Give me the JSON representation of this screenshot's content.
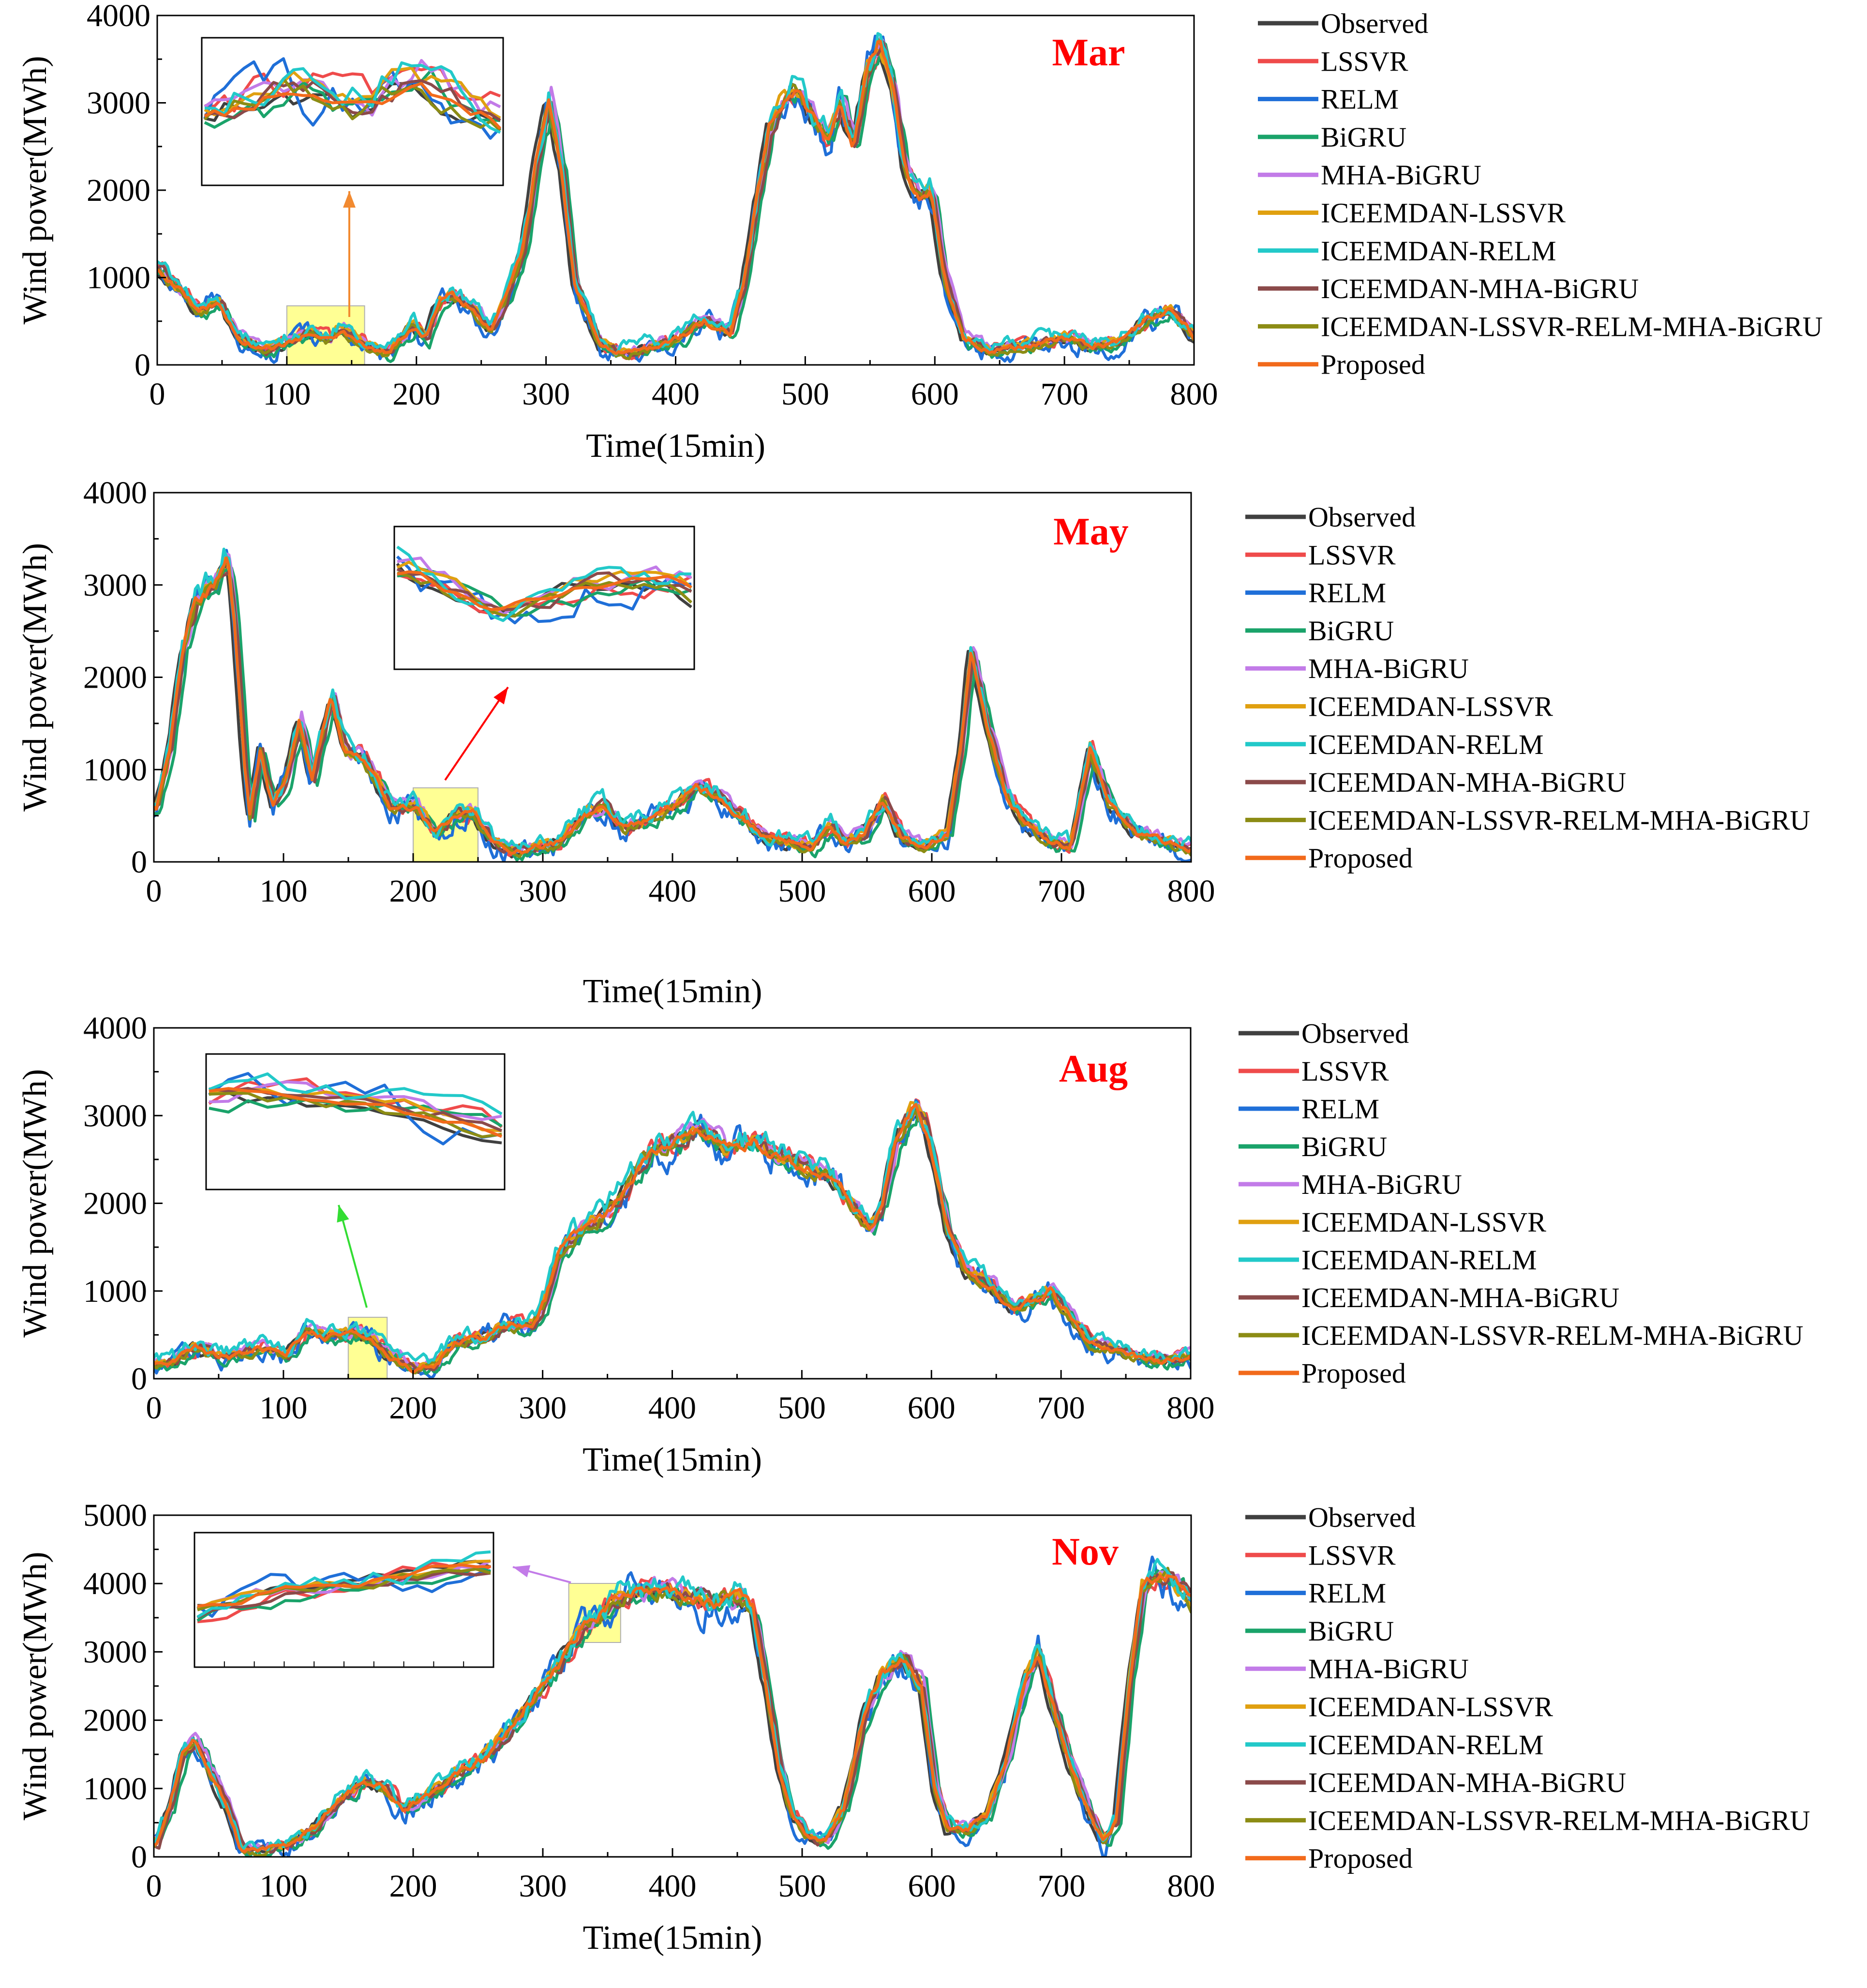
{
  "series_names": [
    "Observed",
    "LSSVR",
    "RELM",
    "BiGRU",
    "MHA-BiGRU",
    "ICEEMDAN-LSSVR",
    "ICEEMDAN-RELM",
    "ICEEMDAN-MHA-BiGRU",
    "ICEEMDAN-LSSVR-RELM-MHA-BiGRU",
    "Proposed"
  ],
  "colors": {
    "Observed": "#404040",
    "LSSVR": "#ef4b4b",
    "RELM": "#1f6fd8",
    "BiGRU": "#1aa36a",
    "MHA-BiGRU": "#c27be8",
    "ICEEMDAN-LSSVR": "#e0a010",
    "ICEEMDAN-RELM": "#22c9c9",
    "ICEEMDAN-MHA-BiGRU": "#8b4a4a",
    "ICEEMDAN-LSSVR-RELM-MHA-BiGRU": "#8c8c14",
    "Proposed": "#f26a1b",
    "panel_title": "#ff0000",
    "highlight": "#ffff66",
    "arrow_mar": "#f28a30",
    "arrow_may": "#ff0000",
    "arrow_aug": "#33dd33",
    "arrow_nov": "#c27be8"
  },
  "chart_data": [
    {
      "type": "line",
      "panel": "Mar",
      "title": "Mar",
      "xlabel": "Time(15min)",
      "ylabel": "Wind power(MWh)",
      "xlim": [
        0,
        800
      ],
      "ylim": [
        0,
        4000
      ],
      "xticks": [
        "0",
        "100",
        "200",
        "300",
        "400",
        "500",
        "600",
        "700",
        "800"
      ],
      "yticks": [
        "0",
        "1000",
        "2000",
        "3000",
        "4000"
      ],
      "legend": [
        "Observed",
        "LSSVR",
        "RELM",
        "BiGRU",
        "MHA-BiGRU",
        "ICEEMDAN-LSSVR",
        "ICEEMDAN-RELM",
        "ICEEMDAN-MHA-BiGRU",
        "ICEEMDAN-LSSVR-RELM-MHA-BiGRU",
        "Proposed"
      ],
      "highlight_range": [
        100,
        160
      ],
      "observed_keypoints": [
        [
          0,
          1050
        ],
        [
          15,
          850
        ],
        [
          30,
          600
        ],
        [
          45,
          720
        ],
        [
          60,
          300
        ],
        [
          80,
          150
        ],
        [
          100,
          250
        ],
        [
          115,
          380
        ],
        [
          130,
          280
        ],
        [
          140,
          400
        ],
        [
          160,
          200
        ],
        [
          175,
          120
        ],
        [
          195,
          450
        ],
        [
          205,
          300
        ],
        [
          215,
          700
        ],
        [
          225,
          800
        ],
        [
          240,
          650
        ],
        [
          255,
          400
        ],
        [
          265,
          700
        ],
        [
          280,
          1300
        ],
        [
          290,
          2300
        ],
        [
          300,
          3000
        ],
        [
          310,
          2200
        ],
        [
          320,
          900
        ],
        [
          340,
          200
        ],
        [
          360,
          120
        ],
        [
          380,
          200
        ],
        [
          400,
          300
        ],
        [
          420,
          500
        ],
        [
          440,
          350
        ],
        [
          450,
          900
        ],
        [
          460,
          1800
        ],
        [
          470,
          2700
        ],
        [
          480,
          3000
        ],
        [
          490,
          3150
        ],
        [
          500,
          2900
        ],
        [
          515,
          2600
        ],
        [
          525,
          3000
        ],
        [
          535,
          2500
        ],
        [
          545,
          3300
        ],
        [
          555,
          3700
        ],
        [
          565,
          3200
        ],
        [
          575,
          2200
        ],
        [
          585,
          1900
        ],
        [
          595,
          2000
        ],
        [
          605,
          1000
        ],
        [
          620,
          300
        ],
        [
          640,
          150
        ],
        [
          660,
          200
        ],
        [
          680,
          250
        ],
        [
          700,
          300
        ],
        [
          720,
          200
        ],
        [
          740,
          250
        ],
        [
          760,
          500
        ],
        [
          780,
          600
        ],
        [
          800,
          300
        ]
      ]
    },
    {
      "type": "line",
      "panel": "May",
      "title": "May",
      "xlabel": "Time(15min)",
      "ylabel": "Wind power(MWh)",
      "xlim": [
        0,
        800
      ],
      "ylim": [
        0,
        4000
      ],
      "xticks": [
        "0",
        "100",
        "200",
        "300",
        "400",
        "500",
        "600",
        "700",
        "800"
      ],
      "yticks": [
        "0",
        "1000",
        "2000",
        "3000",
        "4000"
      ],
      "legend": [
        "Observed",
        "LSSVR",
        "RELM",
        "BiGRU",
        "MHA-BiGRU",
        "ICEEMDAN-LSSVR",
        "ICEEMDAN-RELM",
        "ICEEMDAN-MHA-BiGRU",
        "ICEEMDAN-LSSVR-RELM-MHA-BiGRU",
        "Proposed"
      ],
      "highlight_range": [
        200,
        250
      ],
      "observed_keypoints": [
        [
          0,
          600
        ],
        [
          10,
          1200
        ],
        [
          20,
          2300
        ],
        [
          30,
          2800
        ],
        [
          45,
          3000
        ],
        [
          55,
          3300
        ],
        [
          60,
          2600
        ],
        [
          68,
          1000
        ],
        [
          72,
          500
        ],
        [
          80,
          1200
        ],
        [
          90,
          600
        ],
        [
          100,
          900
        ],
        [
          110,
          1500
        ],
        [
          120,
          900
        ],
        [
          135,
          1800
        ],
        [
          145,
          1200
        ],
        [
          160,
          1100
        ],
        [
          180,
          600
        ],
        [
          200,
          600
        ],
        [
          215,
          300
        ],
        [
          230,
          500
        ],
        [
          245,
          500
        ],
        [
          260,
          200
        ],
        [
          275,
          100
        ],
        [
          290,
          150
        ],
        [
          310,
          200
        ],
        [
          330,
          500
        ],
        [
          345,
          600
        ],
        [
          360,
          350
        ],
        [
          380,
          450
        ],
        [
          400,
          600
        ],
        [
          415,
          800
        ],
        [
          430,
          750
        ],
        [
          450,
          500
        ],
        [
          470,
          250
        ],
        [
          490,
          200
        ],
        [
          505,
          150
        ],
        [
          520,
          400
        ],
        [
          530,
          200
        ],
        [
          545,
          300
        ],
        [
          560,
          650
        ],
        [
          575,
          250
        ],
        [
          590,
          150
        ],
        [
          610,
          300
        ],
        [
          620,
          1200
        ],
        [
          628,
          2300
        ],
        [
          640,
          1500
        ],
        [
          655,
          700
        ],
        [
          670,
          400
        ],
        [
          690,
          200
        ],
        [
          705,
          150
        ],
        [
          720,
          1200
        ],
        [
          735,
          600
        ],
        [
          755,
          300
        ],
        [
          780,
          200
        ],
        [
          800,
          100
        ]
      ]
    },
    {
      "type": "line",
      "panel": "Aug",
      "title": "Aug",
      "xlabel": "Time(15min)",
      "ylabel": "Wind power(MWh)",
      "xlim": [
        0,
        800
      ],
      "ylim": [
        0,
        4000
      ],
      "xticks": [
        "0",
        "100",
        "200",
        "300",
        "400",
        "500",
        "600",
        "700",
        "800"
      ],
      "yticks": [
        "0",
        "1000",
        "2000",
        "3000",
        "4000"
      ],
      "legend": [
        "Observed",
        "LSSVR",
        "RELM",
        "BiGRU",
        "MHA-BiGRU",
        "ICEEMDAN-LSSVR",
        "ICEEMDAN-RELM",
        "ICEEMDAN-MHA-BiGRU",
        "ICEEMDAN-LSSVR-RELM-MHA-BiGRU",
        "Proposed"
      ],
      "highlight_range": [
        150,
        180
      ],
      "observed_keypoints": [
        [
          0,
          150
        ],
        [
          15,
          200
        ],
        [
          30,
          350
        ],
        [
          45,
          250
        ],
        [
          60,
          250
        ],
        [
          80,
          350
        ],
        [
          100,
          250
        ],
        [
          115,
          550
        ],
        [
          130,
          450
        ],
        [
          150,
          500
        ],
        [
          165,
          450
        ],
        [
          180,
          250
        ],
        [
          200,
          100
        ],
        [
          215,
          150
        ],
        [
          230,
          400
        ],
        [
          250,
          450
        ],
        [
          270,
          600
        ],
        [
          290,
          600
        ],
        [
          300,
          900
        ],
        [
          310,
          1400
        ],
        [
          320,
          1600
        ],
        [
          340,
          1800
        ],
        [
          360,
          2100
        ],
        [
          380,
          2600
        ],
        [
          400,
          2700
        ],
        [
          420,
          2800
        ],
        [
          440,
          2600
        ],
        [
          460,
          2700
        ],
        [
          480,
          2500
        ],
        [
          500,
          2400
        ],
        [
          520,
          2300
        ],
        [
          540,
          1900
        ],
        [
          550,
          1700
        ],
        [
          560,
          2000
        ],
        [
          570,
          2700
        ],
        [
          585,
          3100
        ],
        [
          595,
          2800
        ],
        [
          610,
          1700
        ],
        [
          625,
          1200
        ],
        [
          640,
          1100
        ],
        [
          660,
          800
        ],
        [
          680,
          900
        ],
        [
          690,
          1000
        ],
        [
          705,
          700
        ],
        [
          720,
          400
        ],
        [
          735,
          350
        ],
        [
          755,
          250
        ],
        [
          775,
          200
        ],
        [
          800,
          250
        ]
      ]
    },
    {
      "type": "line",
      "panel": "Nov",
      "title": "Nov",
      "xlabel": "Time(15min)",
      "ylabel": "Wind power(MWh)",
      "xlim": [
        0,
        800
      ],
      "ylim": [
        0,
        5000
      ],
      "xticks": [
        "0",
        "100",
        "200",
        "300",
        "400",
        "500",
        "600",
        "700",
        "800"
      ],
      "yticks": [
        "0",
        "1000",
        "2000",
        "3000",
        "4000",
        "5000"
      ],
      "legend": [
        "Observed",
        "LSSVR",
        "RELM",
        "BiGRU",
        "MHA-BiGRU",
        "ICEEMDAN-LSSVR",
        "ICEEMDAN-RELM",
        "ICEEMDAN-MHA-BiGRU",
        "ICEEMDAN-LSSVR-RELM-MHA-BiGRU",
        "Proposed"
      ],
      "highlight_range": [
        320,
        360
      ],
      "observed_keypoints": [
        [
          0,
          200
        ],
        [
          10,
          700
        ],
        [
          20,
          1500
        ],
        [
          30,
          1700
        ],
        [
          40,
          1300
        ],
        [
          55,
          700
        ],
        [
          65,
          100
        ],
        [
          80,
          100
        ],
        [
          100,
          150
        ],
        [
          120,
          400
        ],
        [
          140,
          800
        ],
        [
          160,
          1100
        ],
        [
          175,
          1000
        ],
        [
          190,
          700
        ],
        [
          210,
          900
        ],
        [
          230,
          1200
        ],
        [
          250,
          1400
        ],
        [
          270,
          1800
        ],
        [
          290,
          2300
        ],
        [
          310,
          2800
        ],
        [
          330,
          3400
        ],
        [
          350,
          3700
        ],
        [
          370,
          3850
        ],
        [
          390,
          3900
        ],
        [
          410,
          3800
        ],
        [
          430,
          3700
        ],
        [
          450,
          3800
        ],
        [
          460,
          3600
        ],
        [
          470,
          2500
        ],
        [
          480,
          1300
        ],
        [
          490,
          600
        ],
        [
          505,
          250
        ],
        [
          515,
          200
        ],
        [
          530,
          700
        ],
        [
          545,
          2000
        ],
        [
          560,
          2700
        ],
        [
          575,
          2900
        ],
        [
          590,
          2500
        ],
        [
          600,
          1000
        ],
        [
          610,
          400
        ],
        [
          625,
          400
        ],
        [
          640,
          600
        ],
        [
          655,
          1400
        ],
        [
          670,
          2600
        ],
        [
          680,
          3000
        ],
        [
          690,
          2300
        ],
        [
          705,
          1300
        ],
        [
          720,
          600
        ],
        [
          730,
          200
        ],
        [
          740,
          500
        ],
        [
          750,
          2500
        ],
        [
          760,
          3900
        ],
        [
          770,
          4100
        ],
        [
          780,
          4100
        ],
        [
          790,
          3900
        ],
        [
          800,
          3700
        ]
      ]
    }
  ]
}
